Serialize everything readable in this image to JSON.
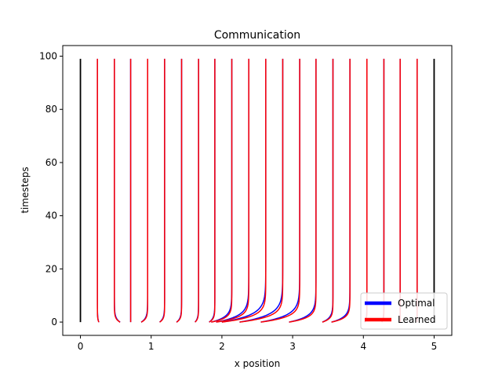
{
  "chart_data": {
    "type": "line",
    "title": "Communication",
    "xlabel": "x position",
    "ylabel": "timesteps",
    "xlim": [
      -0.25,
      5.25
    ],
    "ylim": [
      -5,
      104
    ],
    "xticks": [
      0,
      1,
      2,
      3,
      4,
      5
    ],
    "yticks": [
      0,
      20,
      40,
      60,
      80,
      100
    ],
    "grid": false,
    "legend_position": "bottom-right",
    "boundary_lines": {
      "color": "#000000",
      "x": [
        0,
        5
      ],
      "y_range": [
        0,
        99
      ]
    },
    "series": [
      {
        "name": "Optimal",
        "color": "#0000ff"
      },
      {
        "name": "Learned",
        "color": "#ff0000"
      }
    ],
    "trajectories": [
      {
        "start_x": 0.26,
        "final_x": 0.24
      },
      {
        "start_x": 0.56,
        "final_x": 0.48
      },
      {
        "start_x": 0.71,
        "final_x": 0.71
      },
      {
        "start_x": 0.86,
        "final_x": 0.95
      },
      {
        "start_x": 1.12,
        "final_x": 1.19
      },
      {
        "start_x": 1.36,
        "final_x": 1.43
      },
      {
        "start_x": 1.62,
        "final_x": 1.67
      },
      {
        "start_x": 1.82,
        "final_x": 1.9
      },
      {
        "start_x": 1.85,
        "final_x": 2.14
      },
      {
        "start_x": 1.92,
        "final_x": 2.38
      },
      {
        "start_x": 2.0,
        "final_x": 2.62
      },
      {
        "start_x": 2.25,
        "final_x": 2.86
      },
      {
        "start_x": 2.55,
        "final_x": 3.1
      },
      {
        "start_x": 2.95,
        "final_x": 3.33
      },
      {
        "start_x": 3.42,
        "final_x": 3.57
      },
      {
        "start_x": 3.55,
        "final_x": 3.81
      },
      {
        "start_x": 4.02,
        "final_x": 4.05
      },
      {
        "start_x": 4.26,
        "final_x": 4.29
      },
      {
        "start_x": 4.52,
        "final_x": 4.52
      },
      {
        "start_x": 4.76,
        "final_x": 4.76
      }
    ]
  }
}
